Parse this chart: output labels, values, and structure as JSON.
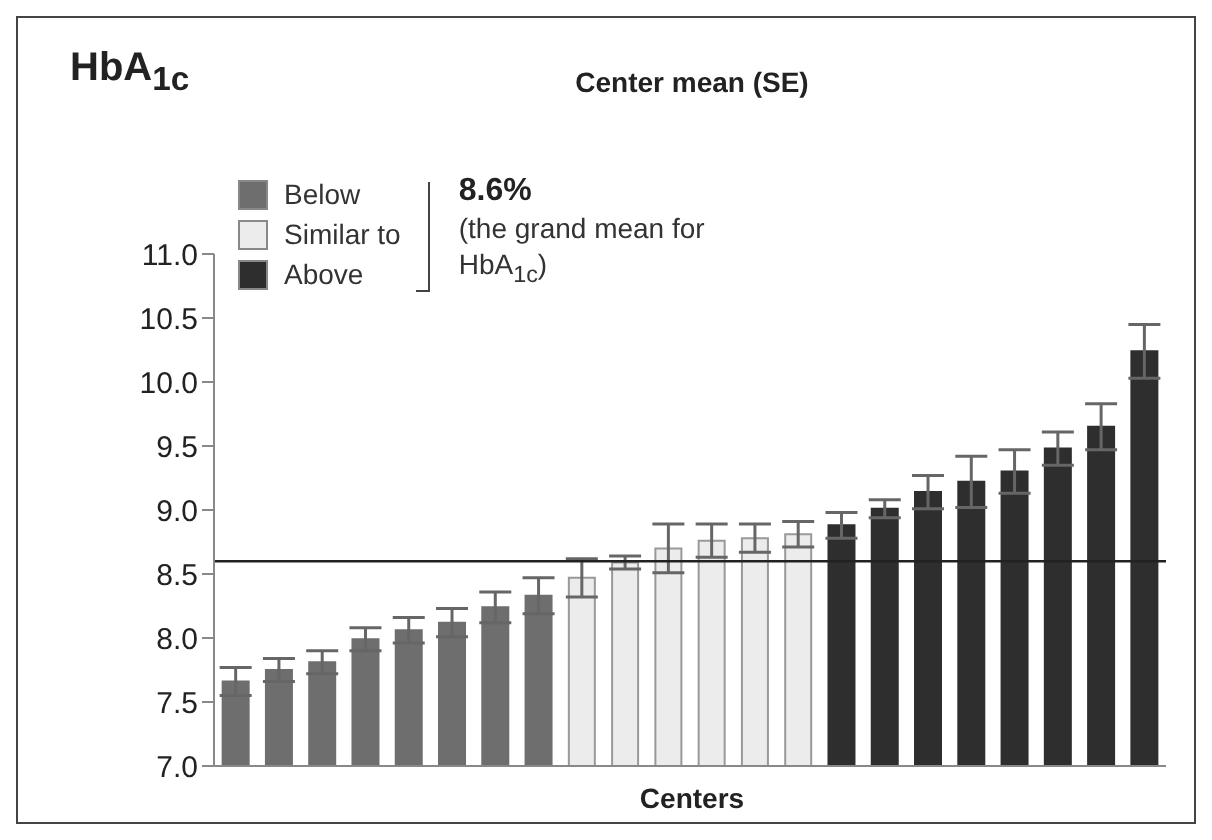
{
  "chart_data": {
    "type": "bar",
    "title": "Center mean (SE)",
    "ylabel": "HbA$_{1c}$",
    "xlabel": "Centers",
    "categories": [
      null,
      null,
      null,
      null,
      null,
      null,
      null,
      null,
      null,
      null,
      null,
      null,
      null,
      null,
      null,
      null,
      null,
      null,
      null,
      null,
      null,
      null
    ],
    "stacked": true,
    "series": [
      {
        "name": "Below",
        "color": "#6e6e6e",
        "values": [
          7.66,
          7.75,
          7.81,
          7.99,
          8.06,
          8.12,
          8.24,
          8.33,
          null,
          null,
          null,
          null,
          null,
          null,
          null,
          null,
          null,
          null,
          null,
          null,
          null,
          null
        ],
        "errors": [
          0.11,
          0.09,
          0.09,
          0.09,
          0.1,
          0.11,
          0.12,
          0.14,
          null,
          null,
          null,
          null,
          null,
          null,
          null,
          null,
          null,
          null,
          null,
          null,
          null,
          null
        ]
      },
      {
        "name": "Similar to",
        "color": "#ececec",
        "values": [
          null,
          null,
          null,
          null,
          null,
          null,
          null,
          null,
          8.47,
          8.59,
          8.7,
          8.76,
          8.78,
          8.81,
          null,
          null,
          null,
          null,
          null,
          null,
          null,
          null
        ],
        "errors": [
          null,
          null,
          null,
          null,
          null,
          null,
          null,
          null,
          0.15,
          0.05,
          0.19,
          0.13,
          0.11,
          0.1,
          null,
          null,
          null,
          null,
          null,
          null,
          null,
          null
        ]
      },
      {
        "name": "Above",
        "color": "#2e2e2e",
        "values": [
          null,
          null,
          null,
          null,
          null,
          null,
          null,
          null,
          null,
          null,
          null,
          null,
          null,
          null,
          8.88,
          9.01,
          9.14,
          9.22,
          9.3,
          9.48,
          9.65,
          10.24
        ],
        "errors": [
          null,
          null,
          null,
          null,
          null,
          null,
          null,
          null,
          null,
          null,
          null,
          null,
          null,
          null,
          0.1,
          0.07,
          0.13,
          0.2,
          0.17,
          0.13,
          0.18,
          0.21
        ]
      }
    ],
    "ylim": [
      7,
      11
    ],
    "yticks": [
      {
        "value": 7,
        "label": "7.0"
      },
      {
        "value": 7.5,
        "label": "7.5"
      },
      {
        "value": 8,
        "label": "8.0"
      },
      {
        "value": 8.5,
        "label": "8.5"
      },
      {
        "value": 9,
        "label": "9.0"
      },
      {
        "value": 9.5,
        "label": "9.5"
      },
      {
        "value": 10,
        "label": "10.0"
      },
      {
        "value": 10.5,
        "label": "10.5"
      },
      {
        "value": 11,
        "label": "11.0"
      }
    ],
    "ref_lines": [
      {
        "axis": "y",
        "value": 8.6,
        "color": "#222222"
      }
    ],
    "annotations": [
      "8.6%",
      "(the grand mean for HbA$_{1c}$)"
    ],
    "legend": "top left",
    "grid": false
  }
}
